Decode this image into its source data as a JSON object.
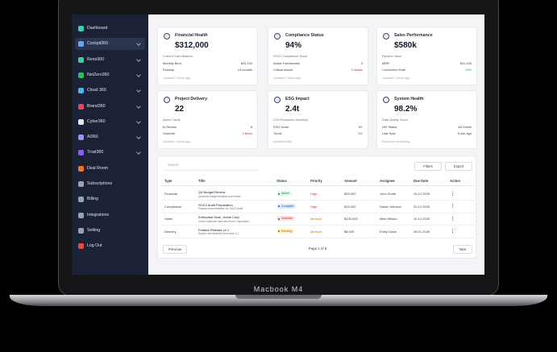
{
  "device_label": "Macbook M4",
  "sidebar": {
    "items": [
      "Dashboard",
      "Cockpit360",
      "Reno360",
      "NetZero360",
      "Cloud 360",
      "Brand360",
      "Cyber360",
      "AI360",
      "Trust360",
      "Deal Room",
      "Subscriptions",
      "Billing",
      "Integrations",
      "Setting",
      "Log Out"
    ]
  },
  "cards": [
    {
      "title": "Financial Health",
      "value": "$312,000",
      "caption": "Current Cash Balance",
      "rows": [
        {
          "label": "Monthly Burn",
          "value": "$22,100"
        },
        {
          "label": "Runway",
          "value": "14 months"
        }
      ],
      "footer": "Updated 2 hours ago"
    },
    {
      "title": "Compliance Status",
      "value": "94%",
      "caption": "SOC2 Compliance Score",
      "rows": [
        {
          "label": "Active Frameworks",
          "value": "3"
        },
        {
          "label": "Critical Issues",
          "value": "2 issues"
        }
      ],
      "footer": "Updated 2 hours ago"
    },
    {
      "title": "Sales Performance",
      "value": "$580k",
      "caption": "Pipeline Value",
      "rows": [
        {
          "label": "MRR",
          "value": "$41,200"
        },
        {
          "label": "Conversion Rate",
          "value": "23%"
        }
      ],
      "footer": "Updated 2 hours ago"
    },
    {
      "title": "Project Delivery",
      "value": "22",
      "caption": "Active Cards",
      "rows": [
        {
          "label": "In Review",
          "value": "8"
        },
        {
          "label": "Overdue",
          "value": "3 items"
        }
      ],
      "footer": "Updated 2 hours ago"
    },
    {
      "title": "ESG Impact",
      "value": "2.4t",
      "caption": "CO2 Emissions (Monthly)",
      "rows": [
        {
          "label": "ESG Score",
          "value": "B+"
        },
        {
          "label": "Trend",
          "value": "5%"
        }
      ],
      "footer": "Updated daily"
    },
    {
      "title": "System Health",
      "value": "98.2%",
      "caption": "Data Quality Score",
      "rows": [
        {
          "label": "API Status",
          "value": "All Online"
        },
        {
          "label": "Last Sync",
          "value": "5 min ago"
        }
      ],
      "footer": "Real-time monitoring"
    }
  ],
  "table": {
    "search": "Search",
    "filters": "Filters",
    "export": "Export",
    "headers": [
      "Type",
      "Title",
      "Status",
      "Priority",
      "Amount",
      "Assignee",
      "Due Date",
      "Action"
    ],
    "rows": [
      {
        "type": "Financial",
        "title": "Q4 Budget Review",
        "subtitle": "Quarterly budget analysis and review",
        "status": "Active",
        "priority": "High",
        "amount": "$25,000",
        "assignee": "John Smith",
        "due_date": "15.12.2025"
      },
      {
        "type": "Compliance",
        "title": "SOC2 Audit Preparation",
        "subtitle": "Prepare documentation for SOC2 audit",
        "status": "Complete",
        "priority": "High",
        "amount": "$15,000",
        "assignee": "Sarah Johnson",
        "due_date": "20.12.2025"
      },
      {
        "type": "Sales",
        "title": "Enterprise Deal - Acme Corp",
        "subtitle": "Close enterprise deal with Acme Corporation",
        "status": "Overdue",
        "priority": "Medium",
        "amount": "$100,000",
        "assignee": "Mike Wilson",
        "due_date": "10.12.2025"
      },
      {
        "type": "Delivery",
        "title": "Feature Release v2.1",
        "subtitle": "Deploy new features for version 2.1",
        "status": "Pending",
        "priority": "Medium",
        "amount": "$8,000",
        "assignee": "Emily Davis",
        "due_date": "08.01.2026"
      }
    ],
    "pagination": {
      "previous": "Previous",
      "page": "Page 1 of 5",
      "next": "Next"
    }
  }
}
